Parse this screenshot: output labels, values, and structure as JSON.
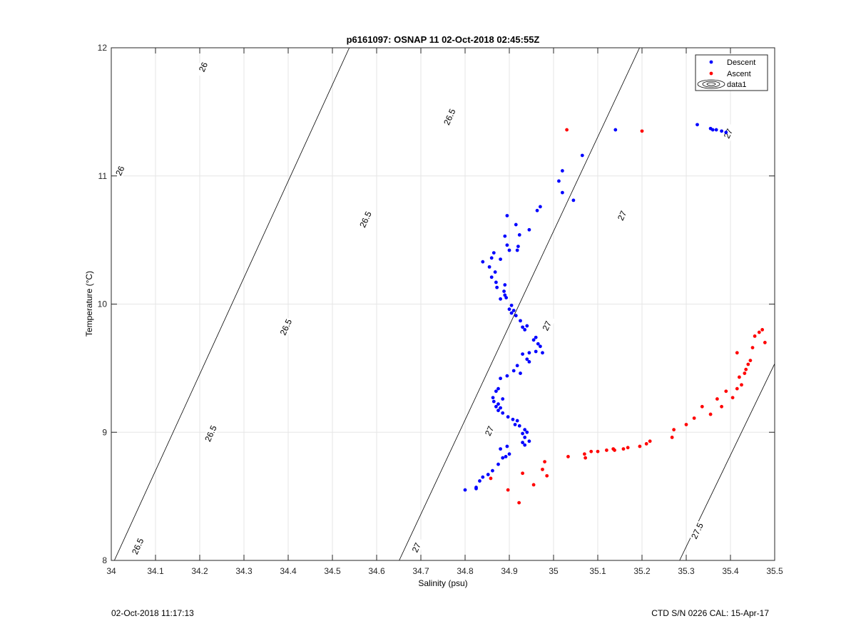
{
  "chart_data": {
    "type": "scatter",
    "title": "p6161097: OSNAP 11 02-Oct-2018 02:45:55Z",
    "xlabel": "Salinity (psu)",
    "ylabel": "Temperature (°C)",
    "xlim": [
      34,
      35.5
    ],
    "ylim": [
      8,
      12
    ],
    "xticks": [
      34,
      34.1,
      34.2,
      34.3,
      34.4,
      34.5,
      34.6,
      34.7,
      34.8,
      34.9,
      35,
      35.1,
      35.2,
      35.3,
      35.4,
      35.5
    ],
    "xtick_labels": [
      "34",
      "34.1",
      "34.2",
      "34.3",
      "34.4",
      "34.5",
      "34.6",
      "34.7",
      "34.8",
      "34.9",
      "35",
      "35.1",
      "35.2",
      "35.3",
      "35.4",
      "35.5"
    ],
    "yticks": [
      8,
      9,
      10,
      11,
      12
    ],
    "ytick_labels": [
      "8",
      "9",
      "10",
      "11",
      "12"
    ],
    "grid": true,
    "legend_position": "top-right",
    "legend": [
      {
        "label": "Descent",
        "color": "#0000ff",
        "marker": "dot"
      },
      {
        "label": "Ascent",
        "color": "#ff0000",
        "marker": "dot"
      },
      {
        "label": "data1",
        "color": "#000000",
        "marker": "contour"
      }
    ],
    "series": [
      {
        "name": "Descent",
        "color": "#0000ff",
        "points": [
          [
            34.8,
            8.55
          ],
          [
            34.825,
            8.57
          ],
          [
            34.825,
            8.56
          ],
          [
            34.833,
            8.62
          ],
          [
            34.84,
            8.65
          ],
          [
            34.852,
            8.67
          ],
          [
            34.862,
            8.7
          ],
          [
            34.875,
            8.75
          ],
          [
            34.885,
            8.8
          ],
          [
            34.892,
            8.81
          ],
          [
            34.9,
            8.83
          ],
          [
            34.88,
            8.87
          ],
          [
            34.895,
            8.89
          ],
          [
            34.935,
            8.9
          ],
          [
            34.93,
            8.92
          ],
          [
            34.945,
            8.93
          ],
          [
            34.935,
            8.96
          ],
          [
            34.93,
            8.99
          ],
          [
            34.94,
            9.0
          ],
          [
            34.935,
            9.02
          ],
          [
            34.923,
            9.05
          ],
          [
            34.913,
            9.06
          ],
          [
            34.918,
            9.09
          ],
          [
            34.908,
            9.1
          ],
          [
            34.897,
            9.12
          ],
          [
            34.885,
            9.15
          ],
          [
            34.875,
            9.17
          ],
          [
            34.88,
            9.19
          ],
          [
            34.87,
            9.2
          ],
          [
            34.875,
            9.22
          ],
          [
            34.865,
            9.24
          ],
          [
            34.885,
            9.26
          ],
          [
            34.863,
            9.27
          ],
          [
            34.87,
            9.32
          ],
          [
            34.875,
            9.34
          ],
          [
            34.88,
            9.42
          ],
          [
            34.895,
            9.44
          ],
          [
            34.91,
            9.48
          ],
          [
            34.918,
            9.52
          ],
          [
            34.925,
            9.46
          ],
          [
            34.945,
            9.55
          ],
          [
            34.94,
            9.57
          ],
          [
            34.93,
            9.61
          ],
          [
            34.945,
            9.62
          ],
          [
            34.96,
            9.63
          ],
          [
            34.975,
            9.62
          ],
          [
            34.97,
            9.67
          ],
          [
            34.965,
            9.69
          ],
          [
            34.955,
            9.72
          ],
          [
            34.96,
            9.74
          ],
          [
            34.935,
            9.8
          ],
          [
            34.93,
            9.82
          ],
          [
            34.94,
            9.83
          ],
          [
            34.925,
            9.87
          ],
          [
            34.915,
            9.91
          ],
          [
            34.905,
            9.93
          ],
          [
            34.91,
            9.95
          ],
          [
            34.9,
            9.96
          ],
          [
            34.905,
            9.99
          ],
          [
            34.893,
            10.05
          ],
          [
            34.89,
            10.07
          ],
          [
            34.88,
            10.04
          ],
          [
            34.888,
            10.1
          ],
          [
            34.89,
            10.15
          ],
          [
            34.872,
            10.13
          ],
          [
            34.87,
            10.17
          ],
          [
            34.86,
            10.21
          ],
          [
            34.868,
            10.25
          ],
          [
            34.855,
            10.29
          ],
          [
            34.84,
            10.33
          ],
          [
            34.86,
            10.36
          ],
          [
            34.88,
            10.35
          ],
          [
            34.865,
            10.4
          ],
          [
            34.9,
            10.42
          ],
          [
            34.895,
            10.46
          ],
          [
            34.89,
            10.53
          ],
          [
            34.918,
            10.42
          ],
          [
            34.92,
            10.45
          ],
          [
            34.923,
            10.54
          ],
          [
            34.915,
            10.62
          ],
          [
            34.895,
            10.69
          ],
          [
            34.963,
            10.73
          ],
          [
            34.97,
            10.76
          ],
          [
            34.945,
            10.58
          ],
          [
            35.045,
            10.81
          ],
          [
            35.02,
            10.87
          ],
          [
            35.012,
            10.96
          ],
          [
            35.02,
            11.04
          ],
          [
            35.065,
            11.16
          ],
          [
            35.14,
            11.36
          ],
          [
            35.325,
            11.4
          ],
          [
            35.355,
            11.37
          ],
          [
            35.36,
            11.36
          ],
          [
            35.368,
            11.36
          ],
          [
            35.38,
            11.35
          ],
          [
            35.39,
            11.34
          ]
        ]
      },
      {
        "name": "Ascent",
        "color": "#ff0000",
        "points": [
          [
            35.03,
            11.36
          ],
          [
            35.2,
            11.35
          ],
          [
            34.858,
            8.64
          ],
          [
            34.897,
            8.55
          ],
          [
            34.922,
            8.45
          ],
          [
            34.93,
            8.68
          ],
          [
            34.955,
            8.59
          ],
          [
            34.975,
            8.71
          ],
          [
            34.985,
            8.66
          ],
          [
            34.98,
            8.77
          ],
          [
            35.033,
            8.81
          ],
          [
            35.07,
            8.83
          ],
          [
            35.072,
            8.8
          ],
          [
            35.085,
            8.85
          ],
          [
            35.1,
            8.85
          ],
          [
            35.12,
            8.86
          ],
          [
            35.135,
            8.87
          ],
          [
            35.138,
            8.86
          ],
          [
            35.158,
            8.87
          ],
          [
            35.168,
            8.88
          ],
          [
            35.195,
            8.89
          ],
          [
            35.21,
            8.91
          ],
          [
            35.218,
            8.93
          ],
          [
            35.268,
            8.96
          ],
          [
            35.272,
            9.02
          ],
          [
            35.3,
            9.06
          ],
          [
            35.318,
            9.11
          ],
          [
            35.336,
            9.2
          ],
          [
            35.355,
            9.14
          ],
          [
            35.37,
            9.26
          ],
          [
            35.38,
            9.2
          ],
          [
            35.39,
            9.32
          ],
          [
            35.405,
            9.27
          ],
          [
            35.415,
            9.34
          ],
          [
            35.425,
            9.37
          ],
          [
            35.42,
            9.43
          ],
          [
            35.432,
            9.46
          ],
          [
            35.435,
            9.49
          ],
          [
            35.44,
            9.53
          ],
          [
            35.445,
            9.56
          ],
          [
            35.45,
            9.66
          ],
          [
            35.455,
            9.75
          ],
          [
            35.465,
            9.78
          ],
          [
            35.472,
            9.8
          ],
          [
            35.478,
            9.7
          ],
          [
            35.415,
            9.62
          ]
        ]
      }
    ],
    "contours": [
      {
        "label": "26",
        "slope": 7.66,
        "x_at_y8": 33.478,
        "label_positions": [
          [
            34.02,
            11.04
          ],
          [
            34.208,
            11.85
          ]
        ]
      },
      {
        "label": "26.5",
        "slope": 7.53,
        "x_at_y8": 34.007,
        "label_positions": [
          [
            34.06,
            8.11
          ],
          [
            34.225,
            8.99
          ],
          [
            34.395,
            9.82
          ],
          [
            34.575,
            10.66
          ],
          [
            34.765,
            11.46
          ]
        ]
      },
      {
        "label": "27",
        "slope": 7.36,
        "x_at_y8": 34.651,
        "label_positions": [
          [
            34.69,
            8.1
          ],
          [
            34.855,
            9.01
          ],
          [
            34.985,
            9.83
          ],
          [
            35.155,
            10.69
          ],
          [
            35.395,
            11.33
          ]
        ]
      },
      {
        "label": "27.5",
        "slope": 7.14,
        "x_at_y8": 35.285,
        "label_positions": [
          [
            35.325,
            8.23
          ]
        ]
      }
    ]
  },
  "footer": {
    "left_timestamp": "02-Oct-2018 11:17:13",
    "right_info": "CTD S/N 0226  CAL: 15-Apr-17"
  }
}
